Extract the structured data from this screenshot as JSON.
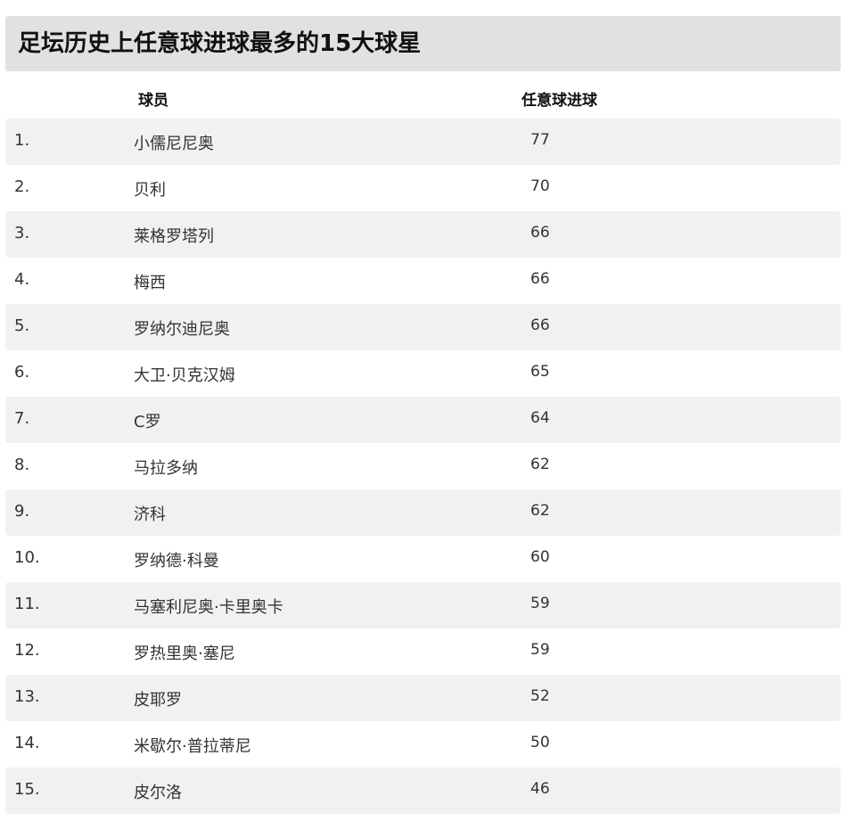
{
  "title": "足坛历史上任意球进球最多的15大球星",
  "columns": {
    "rank": "",
    "player": "球员",
    "goals": "任意球进球"
  },
  "rows": [
    {
      "rank": "1.",
      "player": "小儒尼尼奥",
      "goals": "77"
    },
    {
      "rank": "2.",
      "player": "贝利",
      "goals": "70"
    },
    {
      "rank": "3.",
      "player": "莱格罗塔列",
      "goals": "66"
    },
    {
      "rank": "4.",
      "player": "梅西",
      "goals": "66"
    },
    {
      "rank": "5.",
      "player": "罗纳尔迪尼奥",
      "goals": "66"
    },
    {
      "rank": "6.",
      "player": "大卫·贝克汉姆",
      "goals": "65"
    },
    {
      "rank": "7.",
      "player": "C罗",
      "goals": "64"
    },
    {
      "rank": "8.",
      "player": "马拉多纳",
      "goals": "62"
    },
    {
      "rank": "9.",
      "player": "济科",
      "goals": "62"
    },
    {
      "rank": "10.",
      "player": "罗纳德·科曼",
      "goals": "60"
    },
    {
      "rank": "11.",
      "player": "马塞利尼奥·卡里奥卡",
      "goals": "59"
    },
    {
      "rank": "12.",
      "player": "罗热里奥·塞尼",
      "goals": "59"
    },
    {
      "rank": "13.",
      "player": "皮耶罗",
      "goals": "52"
    },
    {
      "rank": "14.",
      "player": "米歇尔·普拉蒂尼",
      "goals": "50"
    },
    {
      "rank": "15.",
      "player": "皮尔洛",
      "goals": "46"
    }
  ],
  "colors": {
    "title_bg": "#e1e1e1",
    "row_shade": "#f1f1f1"
  }
}
